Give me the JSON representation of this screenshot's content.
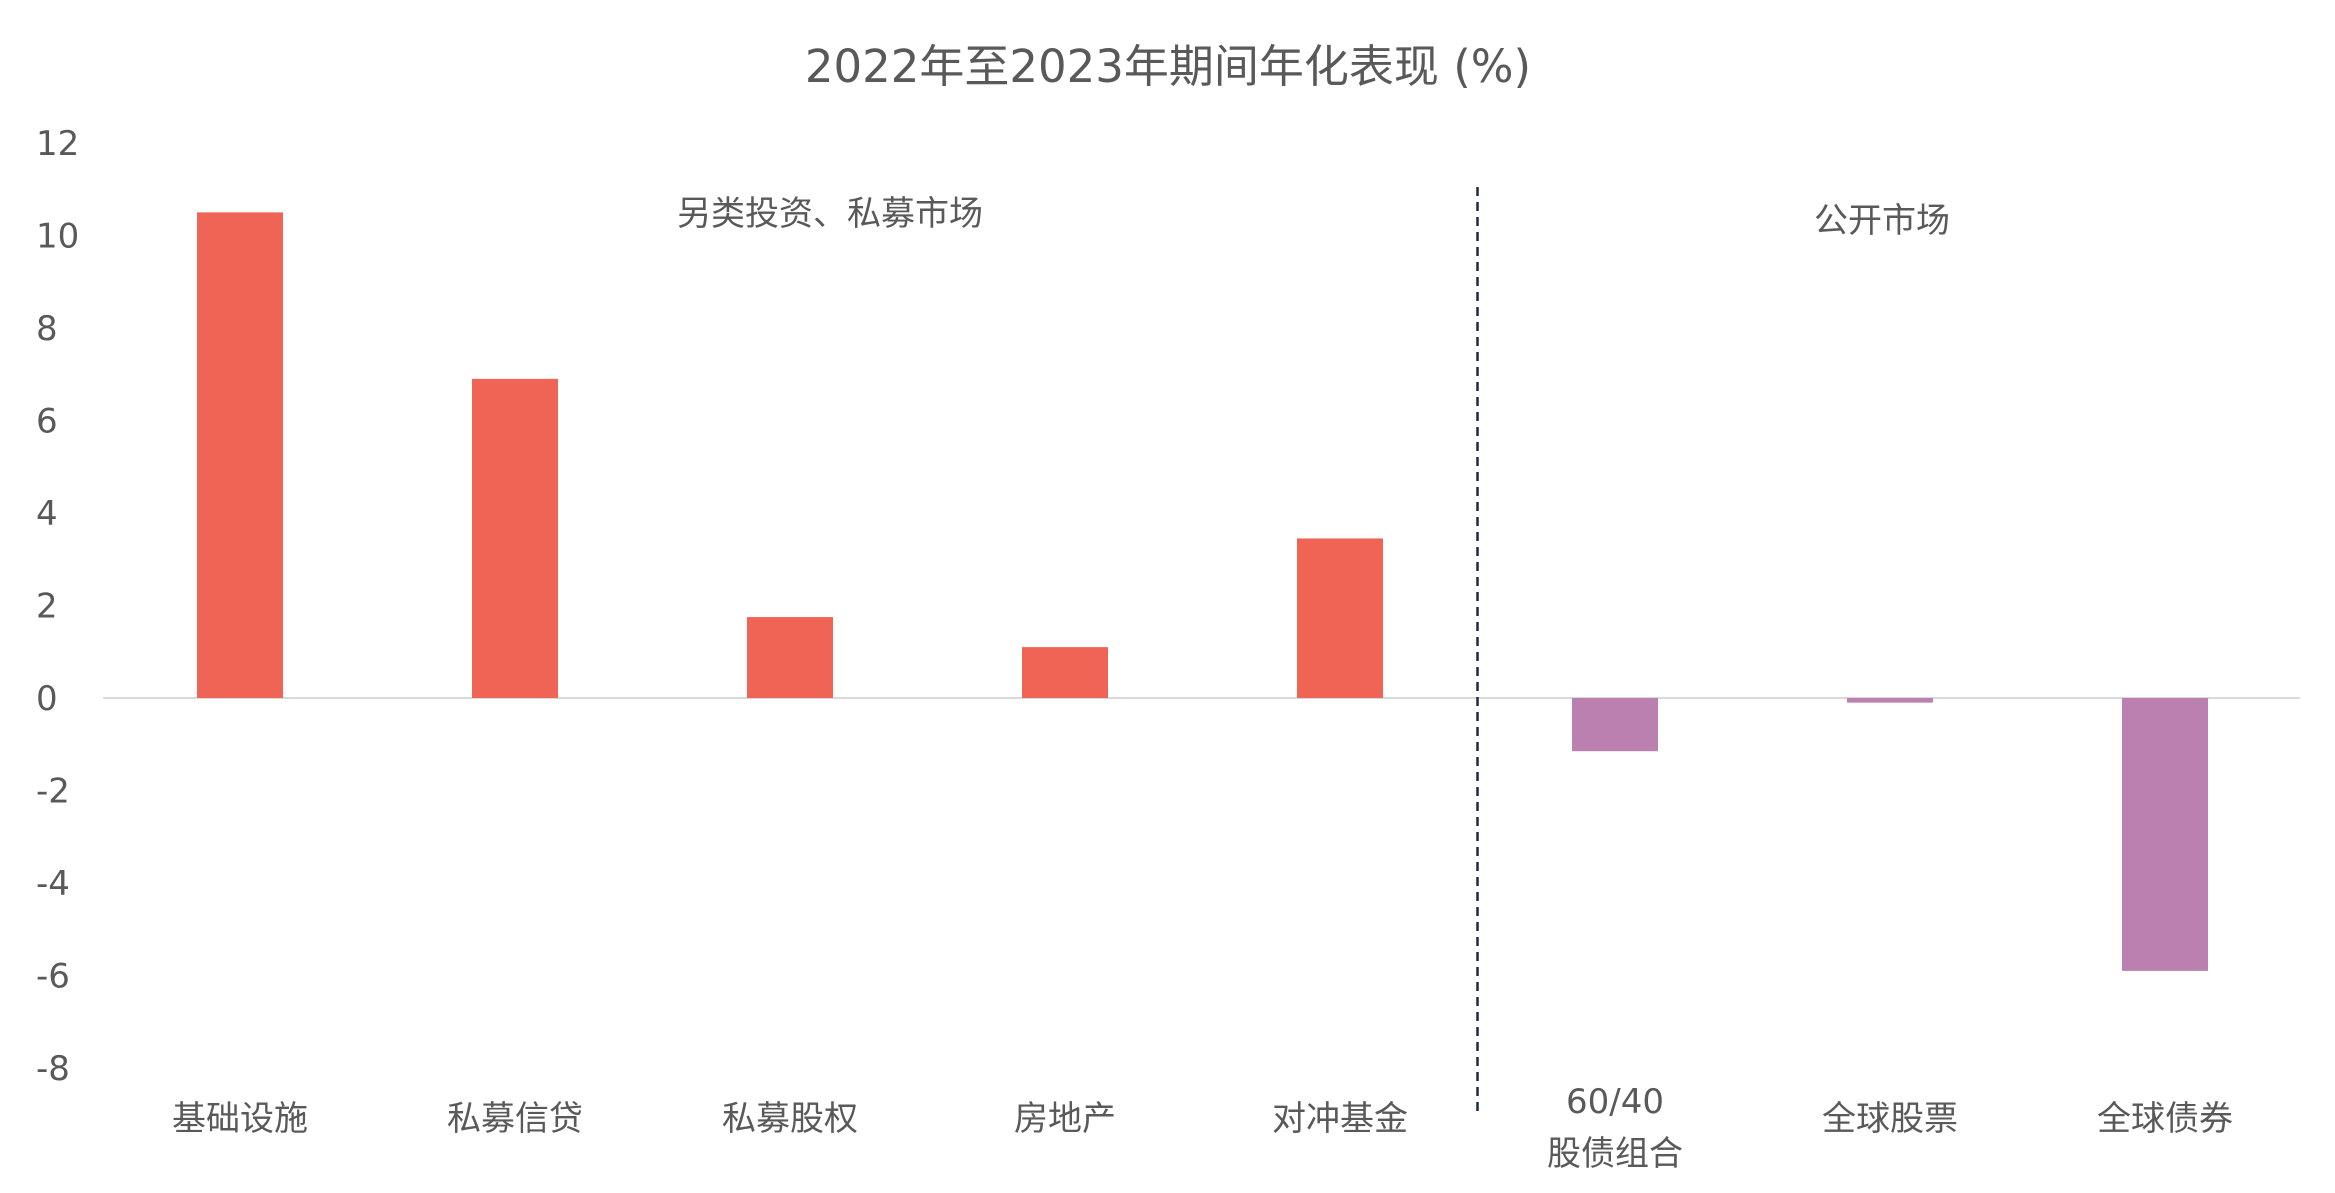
{
  "chart_data": {
    "type": "bar",
    "title": "2022年至2023年期间年化表现 (%)",
    "xlabel": "",
    "ylabel": "",
    "ylim": [
      -8,
      12
    ],
    "yticks": [
      12,
      10,
      8,
      6,
      4,
      2,
      0,
      -2,
      -4,
      -6,
      -8
    ],
    "grid": false,
    "categories": [
      [
        "基础设施"
      ],
      [
        "私募信贷"
      ],
      [
        "私募股权"
      ],
      [
        "房地产"
      ],
      [
        "对冲基金"
      ],
      [
        "60/40",
        "股债组合"
      ],
      [
        "全球股票"
      ],
      [
        "全球债券"
      ]
    ],
    "values": [
      10.5,
      6.9,
      1.75,
      1.1,
      3.45,
      -1.15,
      -0.1,
      -5.9
    ],
    "groups": [
      {
        "label": "另类投资、私募市场",
        "color": "#F06456",
        "count": 5
      },
      {
        "label": "公开市场",
        "color": "#BB80B0",
        "count": 3
      }
    ],
    "divider": "dashed vertical line between 对冲基金 and 60/40"
  }
}
